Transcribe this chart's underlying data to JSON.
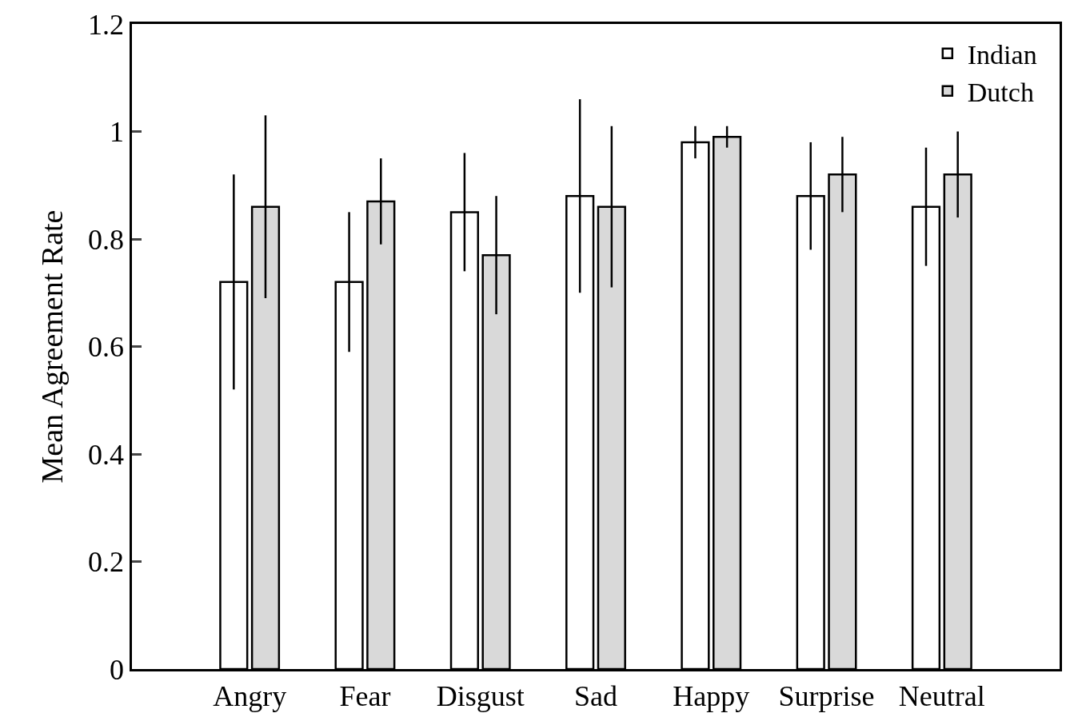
{
  "chart_data": {
    "type": "bar",
    "ylabel": "Mean Agreement Rate",
    "categories": [
      "Angry",
      "Fear",
      "Disgust",
      "Sad",
      "Happy",
      "Surprise",
      "Neutral"
    ],
    "series": [
      {
        "name": "Indian",
        "color": "#ffffff",
        "values": [
          0.72,
          0.72,
          0.85,
          0.88,
          0.98,
          0.88,
          0.86
        ],
        "errors": [
          0.2,
          0.13,
          0.11,
          0.18,
          0.03,
          0.1,
          0.11
        ]
      },
      {
        "name": "Dutch",
        "color": "#d9d9d9",
        "values": [
          0.86,
          0.87,
          0.77,
          0.86,
          0.99,
          0.92,
          0.92
        ],
        "errors": [
          0.17,
          0.08,
          0.11,
          0.15,
          0.02,
          0.07,
          0.08
        ]
      }
    ],
    "ylim": [
      0,
      1.2
    ],
    "yticks": [
      0,
      0.2,
      0.4,
      0.6,
      0.8,
      1,
      1.2
    ],
    "grid": false,
    "legend": "top right"
  }
}
